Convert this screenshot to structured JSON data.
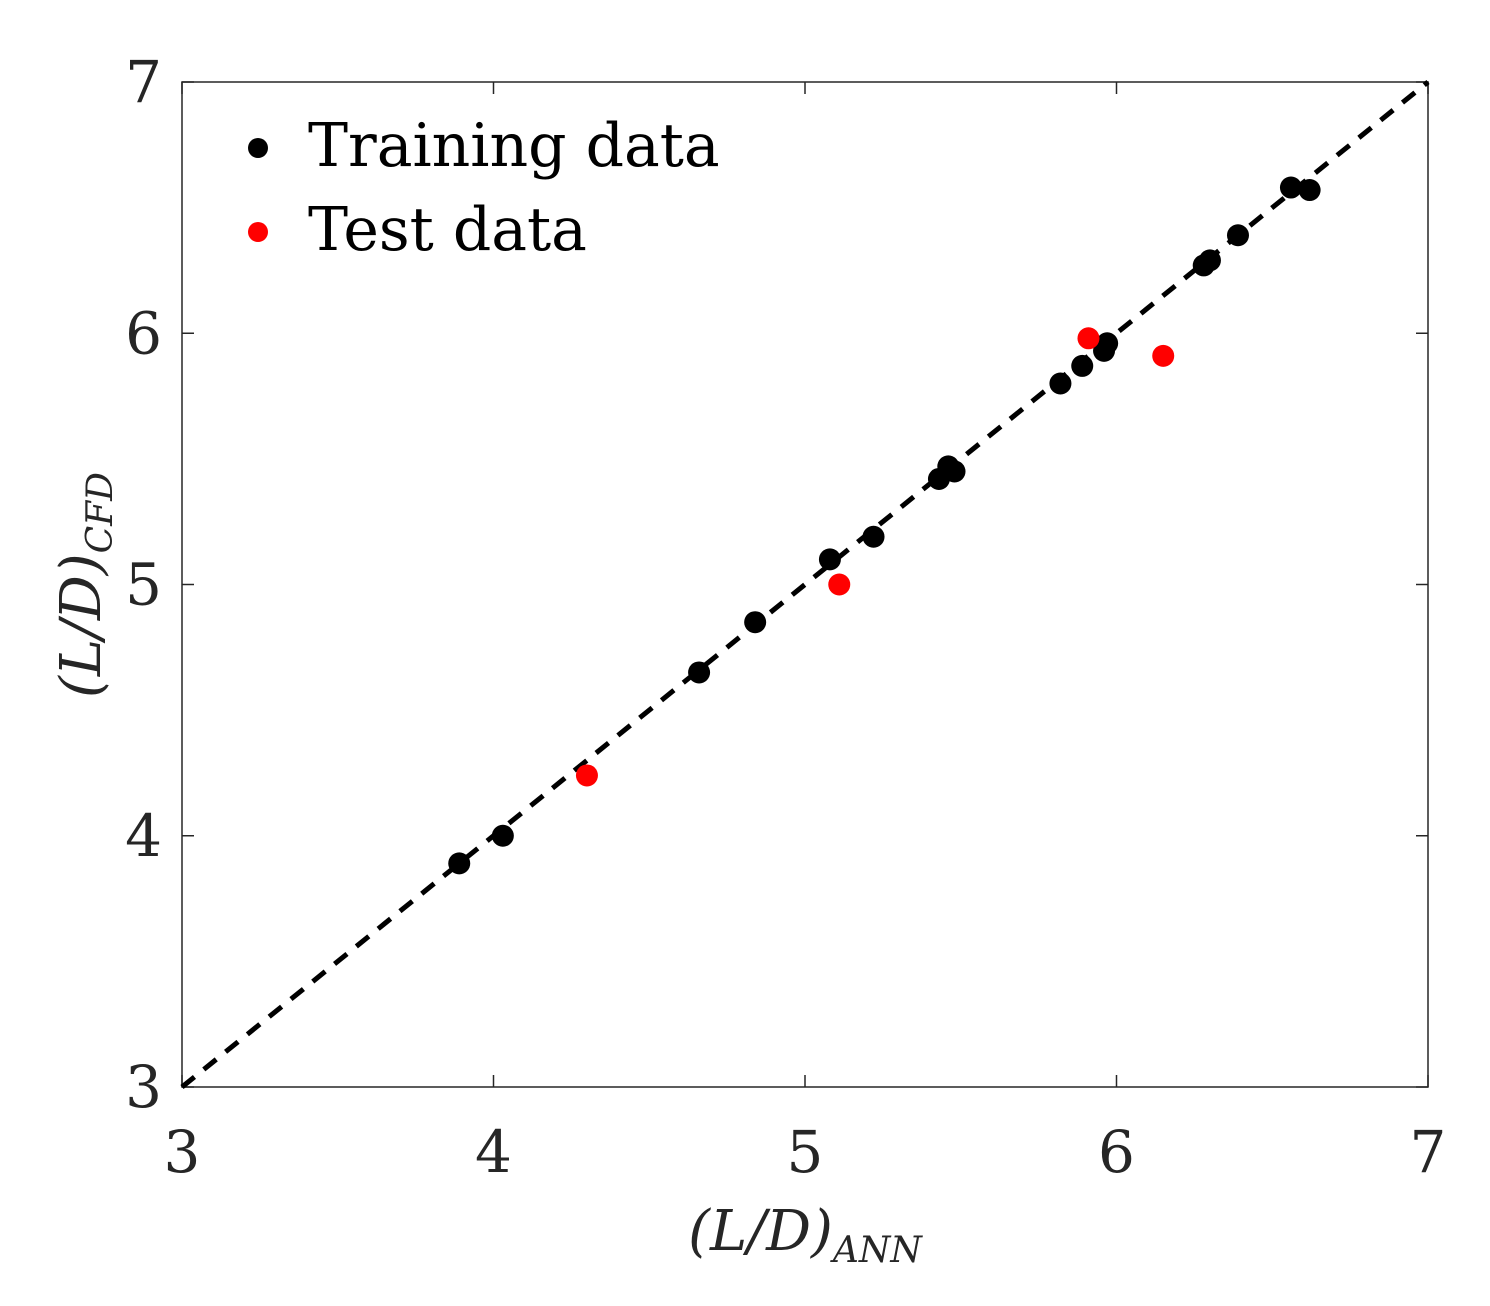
{
  "chart_data": {
    "type": "scatter",
    "title": "",
    "xlabel": {
      "base": "(L/D)",
      "sub": "ANN"
    },
    "ylabel": {
      "base": "(L/D)",
      "sub": "CFD"
    },
    "xlim": [
      3,
      7
    ],
    "ylim": [
      3,
      7
    ],
    "xticks": [
      3,
      4,
      5,
      6,
      7
    ],
    "yticks": [
      3,
      4,
      5,
      6,
      7
    ],
    "grid": false,
    "legend_position": "top-left",
    "reference_line": {
      "type": "y=x",
      "style": "dashed",
      "color": "#000000"
    },
    "series": [
      {
        "name": "Training data",
        "color": "#000000",
        "points": [
          [
            3.89,
            3.89
          ],
          [
            4.03,
            4.0
          ],
          [
            4.66,
            4.65
          ],
          [
            4.84,
            4.85
          ],
          [
            5.08,
            5.1
          ],
          [
            5.22,
            5.19
          ],
          [
            5.43,
            5.42
          ],
          [
            5.46,
            5.47
          ],
          [
            5.48,
            5.45
          ],
          [
            5.82,
            5.8
          ],
          [
            5.89,
            5.87
          ],
          [
            5.96,
            5.93
          ],
          [
            5.97,
            5.96
          ],
          [
            6.28,
            6.27
          ],
          [
            6.3,
            6.29
          ],
          [
            6.39,
            6.39
          ],
          [
            6.56,
            6.58
          ],
          [
            6.62,
            6.57
          ]
        ]
      },
      {
        "name": "Test data",
        "color": "#ff0000",
        "points": [
          [
            4.3,
            4.24
          ],
          [
            5.11,
            5.0
          ],
          [
            5.91,
            5.98
          ],
          [
            6.15,
            5.91
          ]
        ]
      }
    ]
  }
}
